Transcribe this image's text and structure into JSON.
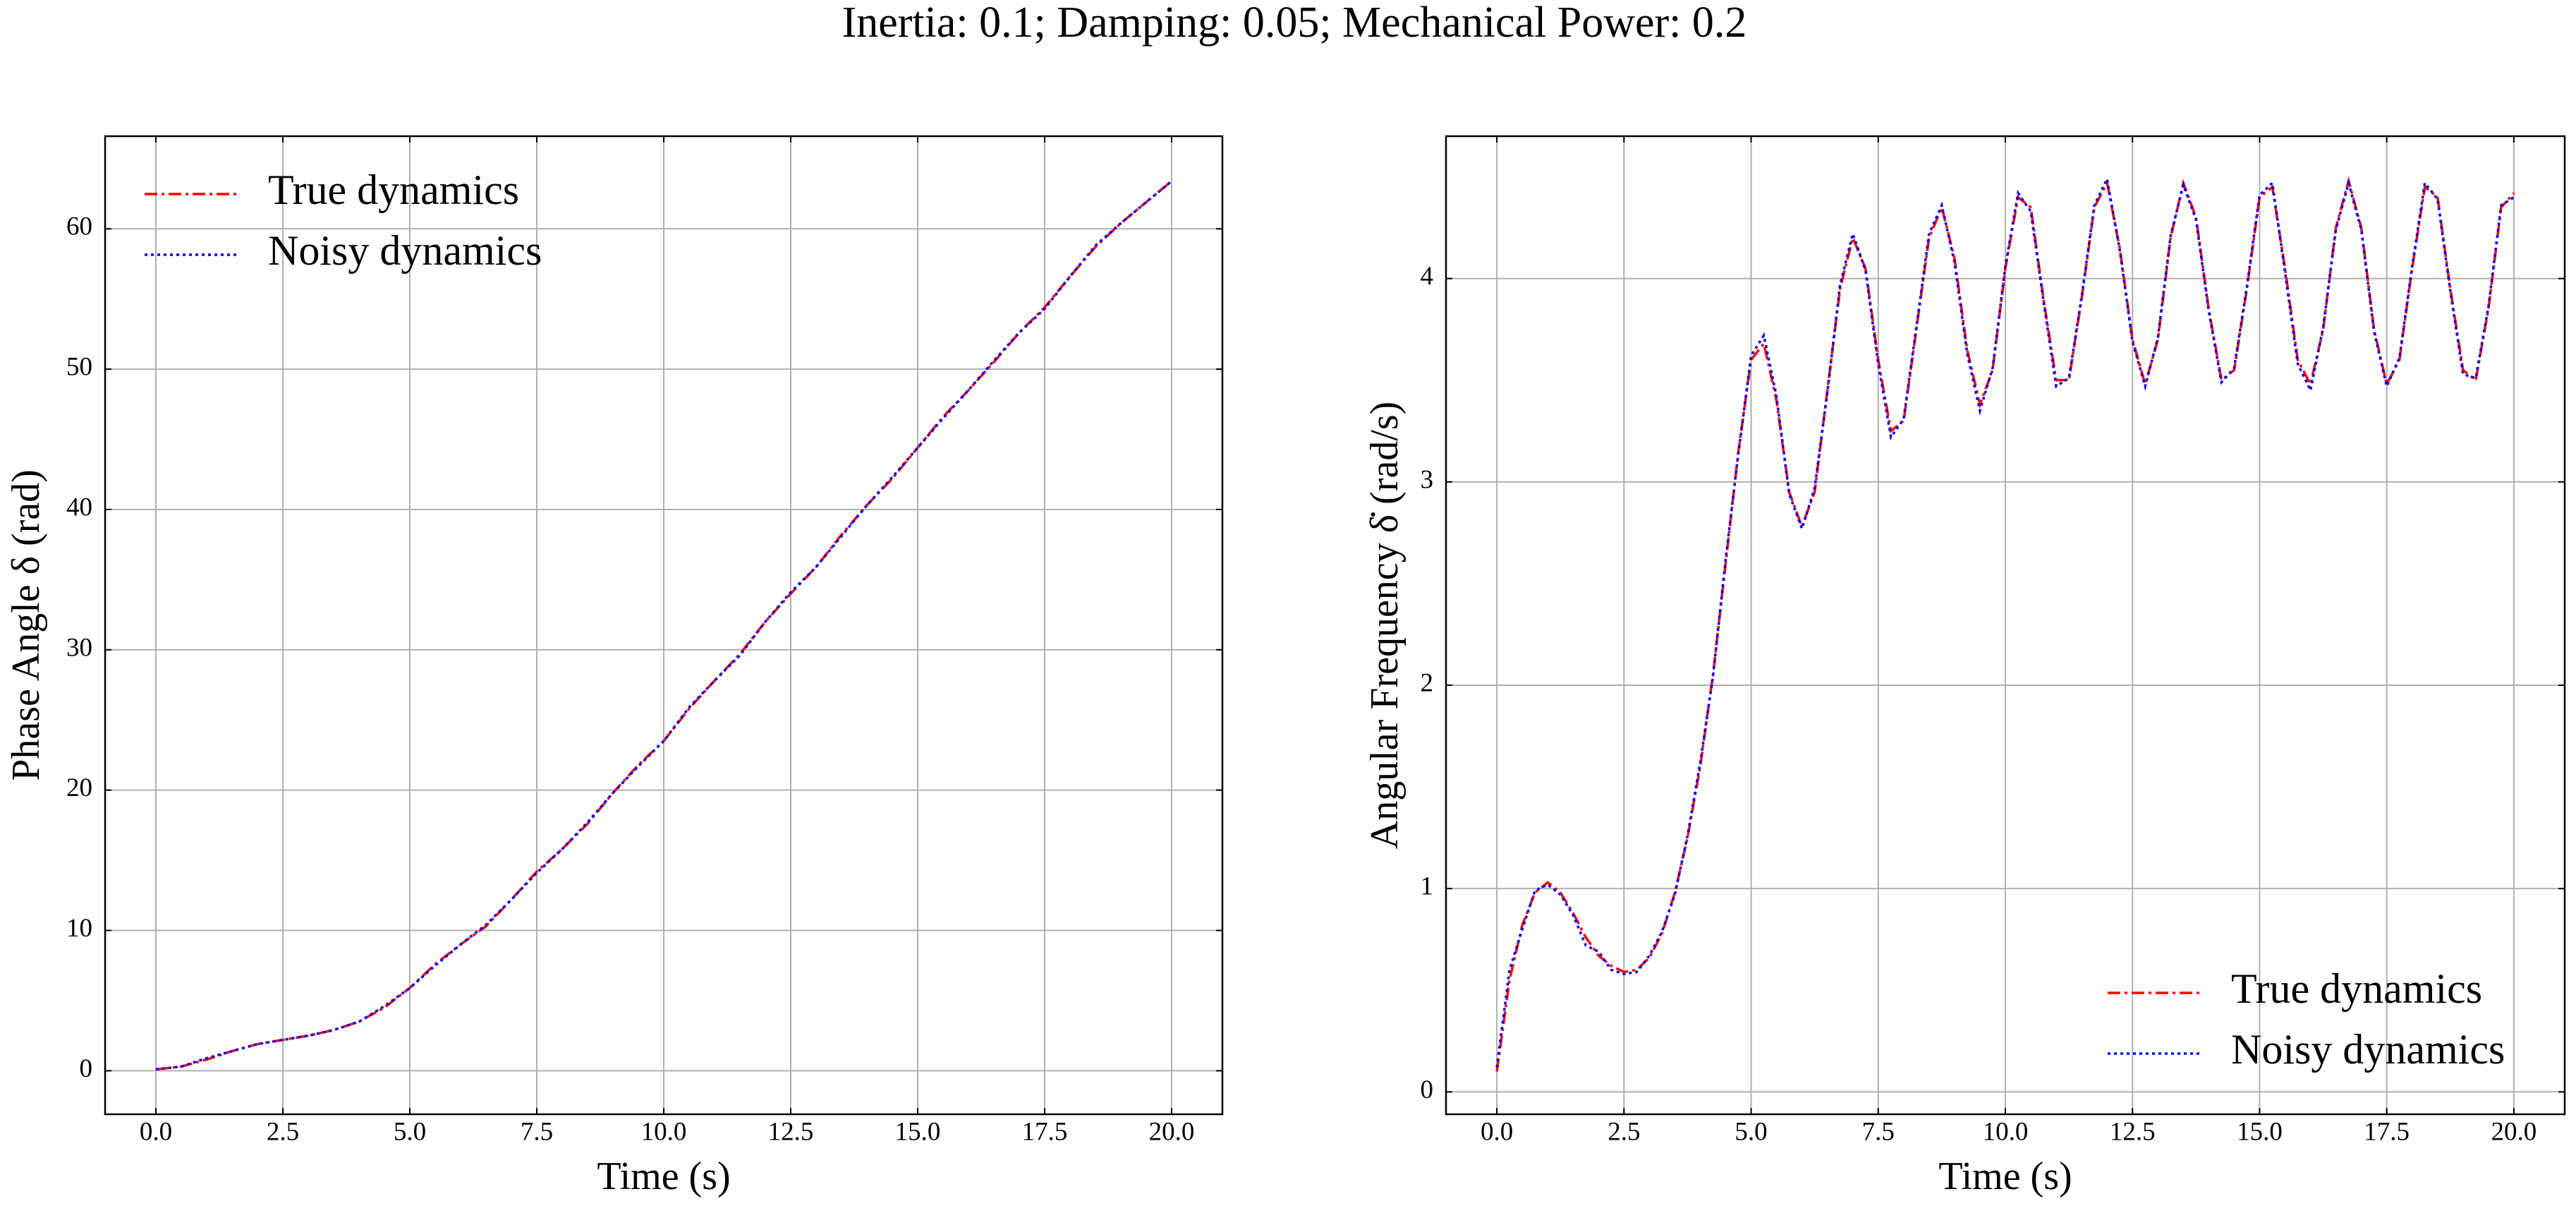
{
  "title": "Inertia: 0.1; Damping: 0.05; Mechanical Power: 0.2",
  "chart_data": [
    {
      "type": "line",
      "xlabel": "Time (s)",
      "ylabel": "Phase Angle δ (rad)",
      "x": [
        0,
        0.5,
        1,
        1.5,
        2,
        2.5,
        3,
        3.5,
        4,
        4.5,
        5,
        5.5,
        6,
        6.5,
        7,
        7.5,
        8,
        8.5,
        9,
        9.5,
        10,
        10.5,
        11,
        11.5,
        12,
        12.5,
        13,
        13.5,
        14,
        14.5,
        15,
        15.5,
        16,
        16.5,
        17,
        17.5,
        18,
        18.5,
        19,
        19.5,
        20
      ],
      "series": [
        {
          "name": "True dynamics",
          "color": "red",
          "linestyle": "dashdot",
          "values": [
            0.1,
            0.3,
            0.8,
            1.4,
            1.9,
            2.2,
            2.5,
            2.9,
            3.5,
            4.5,
            5.9,
            7.6,
            9.0,
            10.3,
            12.2,
            14.2,
            15.8,
            17.6,
            19.8,
            21.8,
            23.5,
            25.8,
            27.8,
            29.7,
            32.0,
            34.0,
            35.9,
            38.2,
            40.3,
            42.2,
            44.4,
            46.6,
            48.5,
            50.5,
            52.6,
            54.4,
            56.6,
            58.7,
            60.4,
            61.9,
            63.4
          ]
        },
        {
          "name": "Noisy dynamics",
          "color": "blue",
          "linestyle": "dotted",
          "values": [
            0.1,
            0.3,
            0.9,
            1.4,
            1.9,
            2.2,
            2.5,
            2.9,
            3.5,
            4.6,
            5.9,
            7.5,
            9.0,
            10.4,
            12.2,
            14.1,
            15.8,
            17.7,
            19.8,
            21.7,
            23.5,
            25.9,
            27.8,
            29.6,
            32.0,
            34.1,
            35.9,
            38.1,
            40.3,
            42.3,
            44.4,
            46.5,
            48.5,
            50.6,
            52.6,
            54.3,
            56.6,
            58.8,
            60.4,
            61.9,
            63.4
          ]
        }
      ],
      "xlim": [
        -1,
        21
      ],
      "xticks": [
        {
          "value": 0,
          "label": "0.0"
        },
        2.5,
        {
          "value": 5,
          "label": "5.0"
        },
        7.5,
        {
          "value": 10,
          "label": "10.0"
        },
        12.5,
        {
          "value": 15,
          "label": "15.0"
        },
        17.5,
        {
          "value": 20,
          "label": "20.0"
        }
      ],
      "ylim": [
        -3.1,
        66.6
      ],
      "yticks": [
        0,
        10,
        20,
        30,
        40,
        50,
        60
      ],
      "grid": true,
      "legend": "upper left"
    },
    {
      "type": "line",
      "xlabel": "Time (s)",
      "ylabel": "Angular Frequency δ̇ (rad/s)",
      "x": [
        0,
        0.25,
        0.5,
        0.75,
        1,
        1.25,
        1.5,
        1.75,
        2,
        2.25,
        2.5,
        2.75,
        3,
        3.25,
        3.5,
        3.75,
        4,
        4.25,
        4.5,
        4.75,
        5,
        5.25,
        5.5,
        5.75,
        6,
        6.25,
        6.5,
        6.75,
        7,
        7.25,
        7.5,
        7.75,
        8,
        8.25,
        8.5,
        8.75,
        9,
        9.25,
        9.5,
        9.75,
        10,
        10.25,
        10.5,
        10.75,
        11,
        11.25,
        11.5,
        11.75,
        12,
        12.25,
        12.5,
        12.75,
        13,
        13.25,
        13.5,
        13.75,
        14,
        14.25,
        14.5,
        14.75,
        15,
        15.25,
        15.5,
        15.75,
        16,
        16.25,
        16.5,
        16.75,
        17,
        17.25,
        17.5,
        17.75,
        18,
        18.25,
        18.5,
        18.75,
        19,
        19.25,
        19.5,
        19.75,
        20
      ],
      "series": [
        {
          "name": "True dynamics",
          "color": "red",
          "linestyle": "dashdot",
          "values": [
            0.1,
            0.55,
            0.82,
            0.98,
            1.03,
            0.98,
            0.88,
            0.76,
            0.67,
            0.62,
            0.59,
            0.6,
            0.66,
            0.78,
            0.98,
            1.25,
            1.6,
            2.05,
            2.6,
            3.15,
            3.6,
            3.68,
            3.4,
            2.95,
            2.78,
            2.95,
            3.45,
            3.95,
            4.2,
            4.05,
            3.6,
            3.25,
            3.3,
            3.75,
            4.2,
            4.35,
            4.1,
            3.65,
            3.38,
            3.55,
            4.05,
            4.4,
            4.35,
            3.9,
            3.5,
            3.5,
            3.9,
            4.35,
            4.47,
            4.15,
            3.7,
            3.48,
            3.7,
            4.2,
            4.47,
            4.3,
            3.85,
            3.5,
            3.55,
            3.95,
            4.4,
            4.45,
            4.05,
            3.6,
            3.48,
            3.75,
            4.25,
            4.48,
            4.25,
            3.75,
            3.48,
            3.6,
            4.05,
            4.45,
            4.4,
            3.95,
            3.55,
            3.5,
            3.85,
            4.35,
            4.42
          ]
        },
        {
          "name": "Noisy dynamics",
          "color": "blue",
          "linestyle": "dotted",
          "values": [
            0.12,
            0.6,
            0.8,
            0.99,
            1.02,
            0.97,
            0.87,
            0.72,
            0.69,
            0.6,
            0.58,
            0.59,
            0.67,
            0.79,
            0.97,
            1.26,
            1.62,
            2.04,
            2.62,
            3.14,
            3.62,
            3.72,
            3.42,
            2.94,
            2.77,
            2.97,
            3.44,
            3.97,
            4.22,
            4.04,
            3.58,
            3.22,
            3.31,
            3.76,
            4.22,
            4.36,
            4.08,
            3.63,
            3.35,
            3.56,
            4.06,
            4.42,
            4.33,
            3.89,
            3.47,
            3.51,
            3.91,
            4.36,
            4.49,
            4.14,
            3.69,
            3.47,
            3.71,
            4.21,
            4.46,
            4.29,
            3.84,
            3.49,
            3.56,
            3.96,
            4.41,
            4.47,
            4.03,
            3.58,
            3.45,
            3.76,
            4.24,
            4.47,
            4.24,
            3.74,
            3.47,
            3.61,
            4.06,
            4.47,
            4.39,
            3.94,
            3.53,
            3.51,
            3.86,
            4.36,
            4.4
          ]
        }
      ],
      "xlim": [
        -1,
        21
      ],
      "xticks": [
        {
          "value": 0,
          "label": "0.0"
        },
        2.5,
        {
          "value": 5,
          "label": "5.0"
        },
        7.5,
        {
          "value": 10,
          "label": "10.0"
        },
        12.5,
        {
          "value": 15,
          "label": "15.0"
        },
        17.5,
        {
          "value": 20,
          "label": "20.0"
        }
      ],
      "ylim": [
        -0.11,
        4.7
      ],
      "yticks": [
        0,
        1,
        2,
        3,
        4
      ],
      "grid": true,
      "legend": "lower right"
    }
  ]
}
